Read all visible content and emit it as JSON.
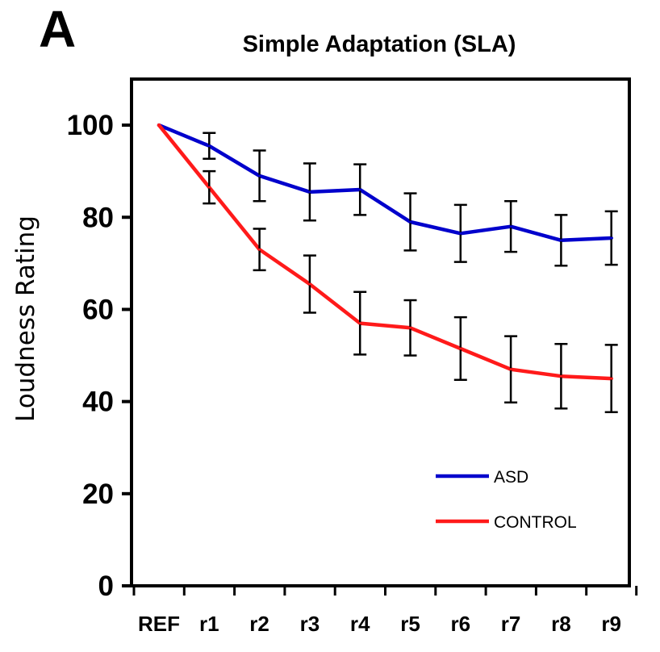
{
  "chart_data": {
    "type": "line",
    "panel_label": "A",
    "title": "Simple Adaptation (SLA)",
    "xlabel": "",
    "ylabel": "Loudness Rating",
    "categories": [
      "REF",
      "r1",
      "r2",
      "r3",
      "r4",
      "r5",
      "r6",
      "r7",
      "r8",
      "r9"
    ],
    "ylim": [
      0,
      110
    ],
    "yticks": [
      0,
      20,
      40,
      60,
      80,
      100
    ],
    "grid": false,
    "legend_position": "bottom-right",
    "series": [
      {
        "name": "ASD",
        "color": "#0000cc",
        "values": [
          100,
          95.5,
          89,
          85.5,
          86,
          79,
          76.5,
          78,
          75,
          75.5
        ],
        "errors": [
          0,
          2.8,
          5.5,
          6.2,
          5.5,
          6.2,
          6.2,
          5.5,
          5.5,
          5.8
        ]
      },
      {
        "name": "CONTROL",
        "color": "#ff1a1a",
        "values": [
          100,
          86.5,
          73,
          65.5,
          57,
          56,
          51.5,
          47,
          45.5,
          45
        ],
        "errors": [
          0,
          3.5,
          4.5,
          6.2,
          6.8,
          6.0,
          6.8,
          7.2,
          7.0,
          7.3
        ]
      }
    ]
  }
}
